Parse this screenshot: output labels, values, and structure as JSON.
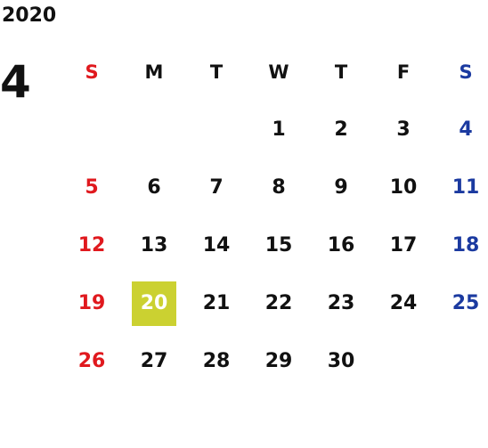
{
  "year": "2020",
  "month": "4",
  "weekdays": [
    "S",
    "M",
    "T",
    "W",
    "T",
    "F",
    "S"
  ],
  "weeks": [
    [
      "",
      "",
      "",
      "1",
      "2",
      "3",
      "4"
    ],
    [
      "5",
      "6",
      "7",
      "8",
      "9",
      "10",
      "11"
    ],
    [
      "12",
      "13",
      "14",
      "15",
      "16",
      "17",
      "18"
    ],
    [
      "19",
      "20",
      "21",
      "22",
      "23",
      "24",
      "25"
    ],
    [
      "26",
      "27",
      "28",
      "29",
      "30",
      "",
      ""
    ]
  ],
  "today": "20",
  "colors": {
    "sunday": "#e0191e",
    "saturday": "#1b3aa0",
    "weekday": "#111111",
    "today_bg": "#cbd131",
    "today_text": "#ffffff"
  }
}
